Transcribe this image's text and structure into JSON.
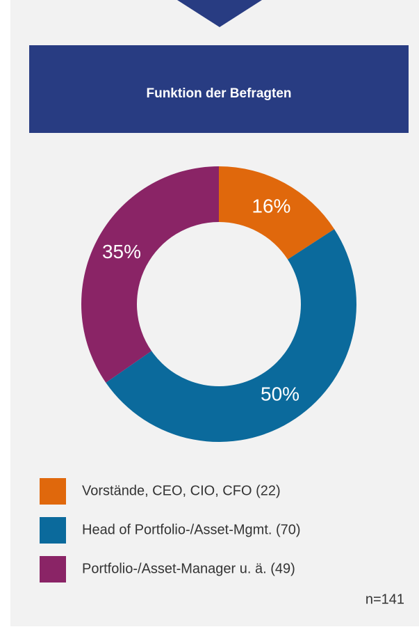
{
  "chart_data": {
    "type": "donut",
    "title": "Funktion der Befragten",
    "categories": [
      "Vorstände, CEO, CIO, CFO (22)",
      "Head of Portfolio-/Asset-Mgmt. (70)",
      "Portfolio-/Asset-Manager u. ä. (49)"
    ],
    "values": [
      16,
      50,
      35
    ],
    "value_labels": [
      "16%",
      "50%",
      "35%"
    ],
    "colors": [
      "#e0680c",
      "#0b6a9c",
      "#8a2466"
    ],
    "note": "n=141"
  }
}
